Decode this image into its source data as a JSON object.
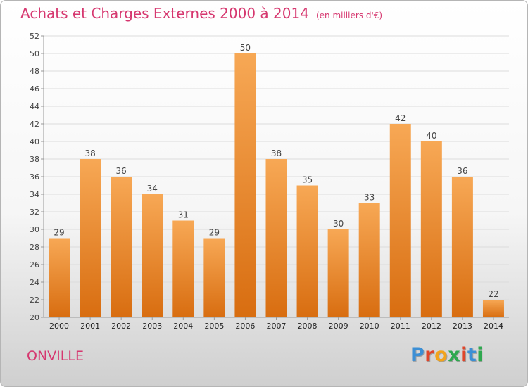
{
  "header": {
    "title": "Achats et Charges Externes 2000 à 2014",
    "subtitle": "(en milliers d'€)"
  },
  "footer": {
    "place": "ONVILLE",
    "logo": "Proxiti"
  },
  "colors": {
    "title": "#d6376f",
    "bar_top": "#f7a855",
    "bar_bottom": "#d86d10",
    "logo_letters": [
      "#3c8fd5",
      "#e0452a",
      "#f2a31b",
      "#2fa84f",
      "#e0452a",
      "#3c8fd5",
      "#2fa84f"
    ]
  },
  "chart_data": {
    "type": "bar",
    "categories": [
      "2000",
      "2001",
      "2002",
      "2003",
      "2004",
      "2005",
      "2006",
      "2007",
      "2008",
      "2009",
      "2010",
      "2011",
      "2012",
      "2013",
      "2014"
    ],
    "values": [
      29,
      38,
      36,
      34,
      31,
      29,
      50,
      38,
      35,
      30,
      33,
      42,
      40,
      36,
      22
    ],
    "ylim": [
      20,
      52
    ],
    "yticks": [
      20,
      22,
      24,
      26,
      28,
      30,
      32,
      34,
      36,
      38,
      40,
      42,
      44,
      46,
      48,
      50,
      52
    ],
    "grid": true,
    "legend": "none"
  }
}
